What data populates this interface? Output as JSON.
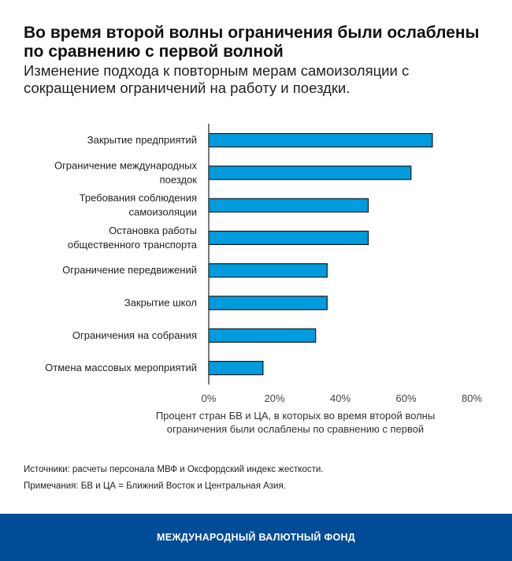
{
  "title": "Во время второй волны ограничения были ослаблены по сравнению с первой волной",
  "subtitle": "Изменение подхода к повторным мерам самоизоляции с сокращением ограничений на работу и поездки.",
  "chart_data": {
    "type": "bar",
    "orientation": "horizontal",
    "categories": [
      [
        "Закрытие предприятий"
      ],
      [
        "Ограничение международных",
        "поездок"
      ],
      [
        "Требования соблюдения",
        "самоизоляции"
      ],
      [
        "Остановка работы",
        "общественного транспорта"
      ],
      [
        "Ограничение передвижений"
      ],
      [
        "Закрытие школ"
      ],
      [
        "Ограничения на собрания"
      ],
      [
        "Отмена массовых мероприятий"
      ]
    ],
    "values": [
      68,
      61.5,
      48.5,
      48.5,
      36,
      36,
      32.5,
      16.5
    ],
    "xlim": [
      0,
      80
    ],
    "xticks": [
      "0%",
      "20%",
      "40%",
      "60%",
      "80%"
    ],
    "xlabel": "Процент стран БВ и ЦА, в которых во время второй волны ограничения были ослаблены по сравнению с первой",
    "bar_color": "#009cde",
    "grid": false
  },
  "notes": {
    "sources": "Источники: расчеты персонала МВФ и Оксфордский индекс жесткости.",
    "remarks": "Примечания: БВ и ЦА = Ближний Восток и Центральная Азия."
  },
  "footer": "МЕЖДУНАРОДНЫЙ ВАЛЮТНЫЙ ФОНД",
  "colors": {
    "footer_bg": "#004c97"
  }
}
